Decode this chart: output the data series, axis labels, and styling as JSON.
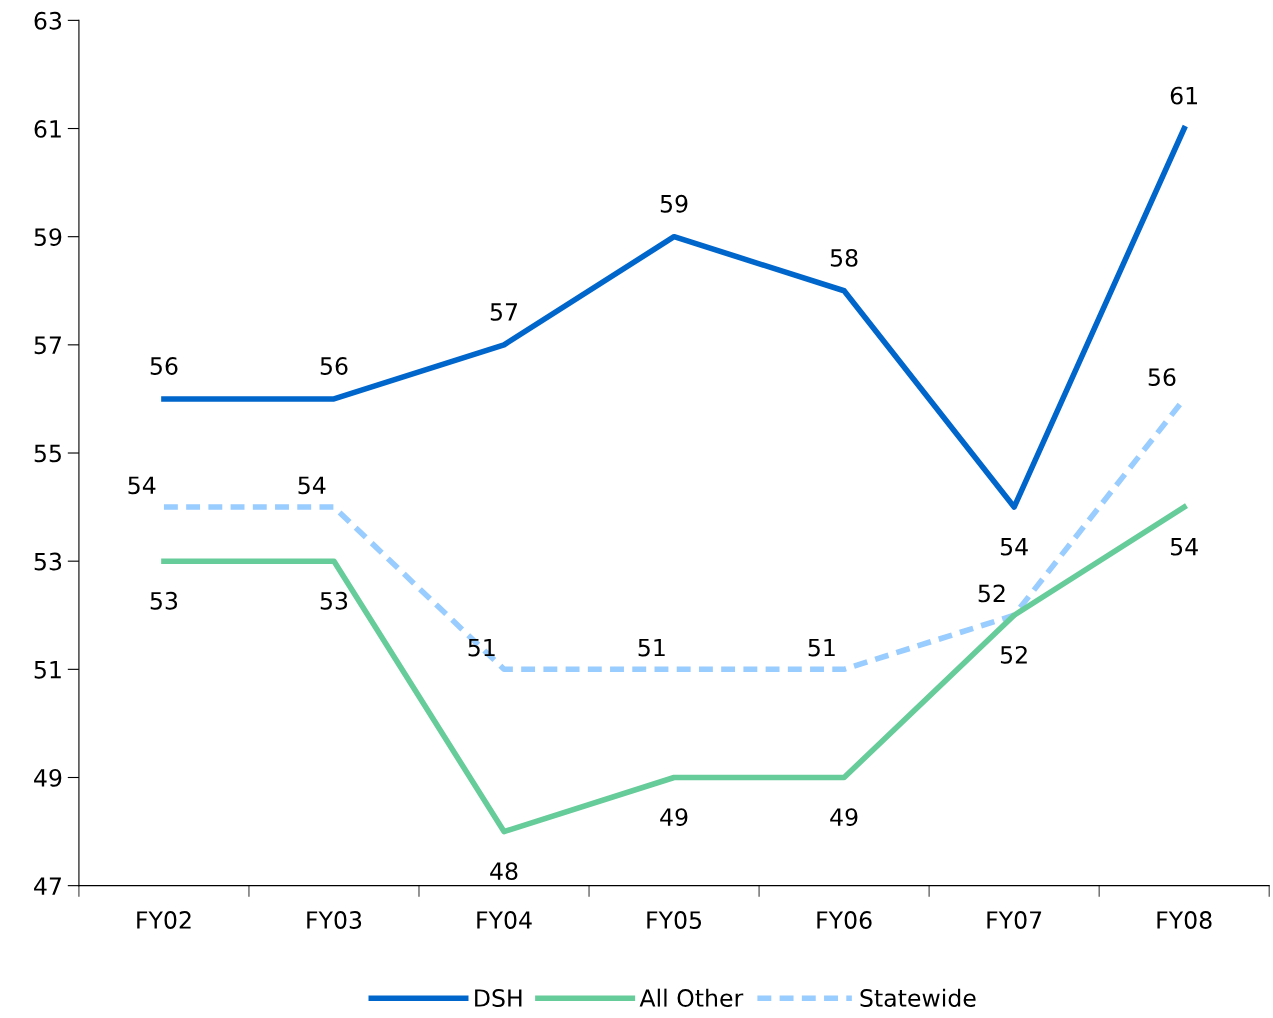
{
  "chart_data": {
    "type": "line",
    "categories": [
      "FY02",
      "FY03",
      "FY04",
      "FY05",
      "FY06",
      "FY07",
      "FY08"
    ],
    "series": [
      {
        "name": "DSH",
        "color": "#0066cc",
        "values": [
          56,
          56,
          57,
          59,
          58,
          54,
          61
        ],
        "line_style": "solid"
      },
      {
        "name": "All Other",
        "color": "#66cc99",
        "values": [
          53,
          53,
          48,
          49,
          49,
          52,
          54
        ],
        "line_style": "solid"
      },
      {
        "name": "Statewide",
        "color": "#99ccff",
        "values": [
          54,
          54,
          51,
          51,
          51,
          52,
          56
        ],
        "line_style": "dashed"
      }
    ],
    "ylim": [
      47,
      63
    ],
    "yticks": [
      47,
      49,
      51,
      53,
      55,
      57,
      59,
      61,
      63
    ],
    "data_labels": true,
    "grid": false,
    "legend": "bottom",
    "marker": "none"
  }
}
